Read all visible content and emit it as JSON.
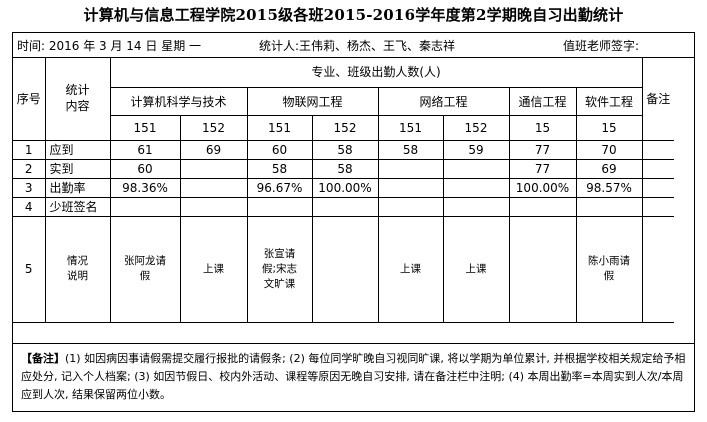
{
  "title": "计算机与信息工程学院2015级各班2015-2016学年度第2学期晚自习出勤统计",
  "info": {
    "time": "时间: 2016 年 3 月 14 日 星期 一",
    "stat": "统计人:王伟莉、杨杰、王飞、秦志祥",
    "teacher_sign": "值班老师签字:"
  },
  "header": {
    "seq": "序号",
    "stat_content": "统计\n内容",
    "dept_header": "专业、班级出勤人数(人)",
    "remark": "备注",
    "majors": [
      "计算机科学与技术",
      "物联网工程",
      "网络工程",
      "通信工程",
      "软件工程"
    ],
    "classes": [
      "151",
      "152",
      "151",
      "152",
      "151",
      "152",
      "15",
      "15"
    ]
  },
  "rows": [
    {
      "seq": "1",
      "label": "应到",
      "cells": [
        "61",
        "69",
        "60",
        "58",
        "58",
        "59",
        "77",
        "70"
      ]
    },
    {
      "seq": "2",
      "label": "实到",
      "cells": [
        "60",
        "",
        "58",
        "58",
        "",
        "",
        "77",
        "69"
      ]
    },
    {
      "seq": "3",
      "label": "出勤率",
      "cells": [
        "98.36%",
        "",
        "96.67%",
        "100.00%",
        "",
        "",
        "100.00%",
        "98.57%"
      ]
    },
    {
      "seq": "4",
      "label": "少班签名",
      "cells": [
        "",
        "",
        "",
        "",
        "",
        "",
        "",
        ""
      ]
    },
    {
      "seq": "5",
      "label": "情况\n说明",
      "cells": [
        "张阿龙请\n假",
        "上课",
        "张宣请\n假;宋志\n文旷课",
        "",
        "上课",
        "上课",
        "",
        "陈小雨请\n假"
      ]
    }
  ],
  "notes": {
    "label": "【备注】",
    "text": "(1) 如因病因事请假需提交履行报批的请假条; (2) 每位同学旷晚自习视同旷课, 将以学期为单位累计, 并根据学校相关规定给予相应处分, 记入个人档案; (3) 如因节假日、校内外活动、课程等原因无晚自习安排, 请在备注栏中注明; (4) 本周出勤率=本周实到人次/本周应到人次, 结果保留两位小数。"
  }
}
